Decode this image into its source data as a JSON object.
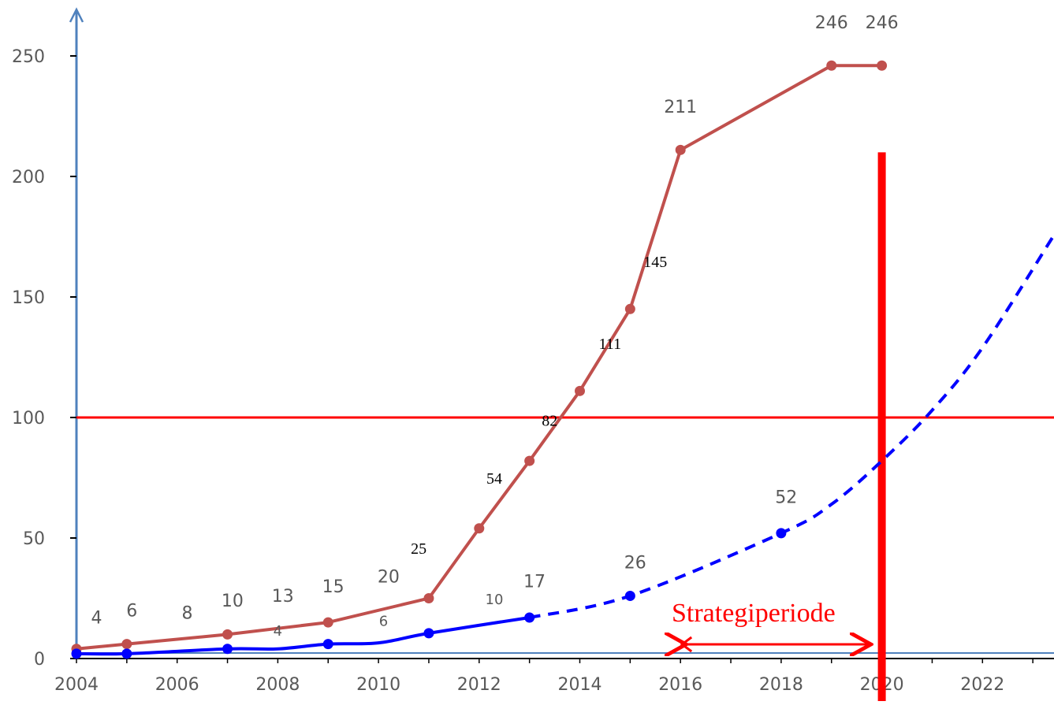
{
  "colors": {
    "series_red": "#c0504d",
    "series_blue": "#0000ff",
    "axis_blue": "#4f81bd",
    "threshold": "#ff0000",
    "label_gray": "#595959"
  },
  "chart_data": {
    "type": "line",
    "title": "",
    "xlabel": "",
    "ylabel": "",
    "xlim": [
      2004,
      2023.4
    ],
    "ylim": [
      0,
      250
    ],
    "grid": false,
    "legend": "none",
    "x_ticks": [
      "2004",
      "2006",
      "2008",
      "2010",
      "2012",
      "2014",
      "2016",
      "2018",
      "2020",
      "2022"
    ],
    "y_ticks": [
      "0",
      "50",
      "100",
      "150",
      "200",
      "250"
    ],
    "series": [
      {
        "color": "#c0504d",
        "style": "solid",
        "points": [
          {
            "x": 2004,
            "y": 4
          },
          {
            "x": 2005,
            "y": 6
          },
          {
            "x": 2007,
            "y": 10
          },
          {
            "x": 2009,
            "y": 15
          },
          {
            "x": 2011,
            "y": 25
          },
          {
            "x": 2012,
            "y": 54
          },
          {
            "x": 2013,
            "y": 82
          },
          {
            "x": 2014,
            "y": 111
          },
          {
            "x": 2015,
            "y": 145
          },
          {
            "x": 2016,
            "y": 211
          },
          {
            "x": 2019,
            "y": 246
          },
          {
            "x": 2020,
            "y": 246
          }
        ]
      },
      {
        "color": "#0000ff",
        "style": "solid",
        "points": [
          {
            "x": 2004,
            "y": 2
          },
          {
            "x": 2005,
            "y": 2
          },
          {
            "x": 2007,
            "y": 4
          },
          {
            "x": 2008,
            "y": 4
          },
          {
            "x": 2009,
            "y": 6
          },
          {
            "x": 2010,
            "y": 6.5
          },
          {
            "x": 2011,
            "y": 10.5
          },
          {
            "x": 2013,
            "y": 17
          }
        ],
        "markers": [
          2004,
          2005,
          2007,
          2009,
          2011,
          2013
        ]
      },
      {
        "color": "#0000ff",
        "style": "dashed",
        "points": [
          {
            "x": 2013,
            "y": 17
          },
          {
            "x": 2015,
            "y": 26
          },
          {
            "x": 2018,
            "y": 52
          },
          {
            "x": 2019,
            "y": 64
          },
          {
            "x": 2020,
            "y": 82
          },
          {
            "x": 2021,
            "y": 103
          },
          {
            "x": 2022,
            "y": 129
          },
          {
            "x": 2023.4,
            "y": 175
          }
        ],
        "markers": [
          2015,
          2018
        ]
      }
    ],
    "data_labels": [
      {
        "text": "4",
        "x": 2004.4,
        "y": 14.5,
        "font": "sans"
      },
      {
        "text": "6",
        "x": 2005.1,
        "y": 17.5,
        "font": "sans"
      },
      {
        "text": "8",
        "x": 2006.2,
        "y": 16.5,
        "font": "sans"
      },
      {
        "text": "10",
        "x": 2007.1,
        "y": 21.5,
        "font": "sans"
      },
      {
        "text": "13",
        "x": 2008.1,
        "y": 23.5,
        "font": "sans"
      },
      {
        "text": "15",
        "x": 2009.1,
        "y": 27.5,
        "font": "sans"
      },
      {
        "text": "20",
        "x": 2010.2,
        "y": 31.5,
        "font": "sans"
      },
      {
        "text": "25",
        "x": 2010.8,
        "y": 43.5,
        "font": "serif"
      },
      {
        "text": "54",
        "x": 2012.3,
        "y": 72.5,
        "font": "serif"
      },
      {
        "text": "82",
        "x": 2013.4,
        "y": 96.5,
        "font": "serif"
      },
      {
        "text": "111",
        "x": 2014.6,
        "y": 128.5,
        "font": "serif"
      },
      {
        "text": "145",
        "x": 2015.5,
        "y": 162.5,
        "font": "serif"
      },
      {
        "text": "211",
        "x": 2016.0,
        "y": 226.5,
        "font": "sans"
      },
      {
        "text": "246",
        "x": 2019.0,
        "y": 261.5,
        "font": "sans"
      },
      {
        "text": "246",
        "x": 2020.0,
        "y": 261.5,
        "font": "sans"
      },
      {
        "text": "4",
        "x": 2008.0,
        "y": 9.5,
        "font": "sans",
        "size": 18
      },
      {
        "text": "6",
        "x": 2010.1,
        "y": 13.5,
        "font": "sans",
        "size": 18
      },
      {
        "text": "10",
        "x": 2012.3,
        "y": 22.5,
        "font": "sans",
        "size": 18
      },
      {
        "text": "17",
        "x": 2013.1,
        "y": 29.5,
        "font": "sans"
      },
      {
        "text": "26",
        "x": 2015.1,
        "y": 37.5,
        "font": "sans"
      },
      {
        "text": "52",
        "x": 2018.1,
        "y": 64.5,
        "font": "sans"
      }
    ],
    "annotations": {
      "threshold_y": 100,
      "marker_year": 2020,
      "marker_top_y": 210,
      "strategy_label": "Strategiperiode",
      "strategy_range": [
        2016,
        2019.8
      ]
    }
  }
}
